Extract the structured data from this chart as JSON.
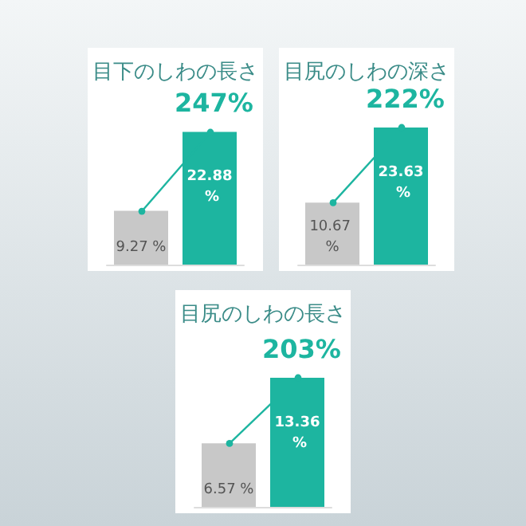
{
  "chart_data": [
    {
      "type": "bar",
      "title": "目下のしわの長さ",
      "categories": [
        null,
        null
      ],
      "values": [
        9.27,
        22.88
      ],
      "colors": [
        "#c8c8c8",
        "#1db5a0"
      ],
      "value_labels": [
        "9.27 %",
        "22.88 %"
      ],
      "annotations": [
        "247%"
      ],
      "tick_labels": false
    },
    {
      "type": "bar",
      "title": "目尻のしわの深さ",
      "categories": [
        null,
        null
      ],
      "values": [
        10.67,
        23.63
      ],
      "colors": [
        "#c8c8c8",
        "#1db5a0"
      ],
      "value_labels": [
        "10.67 %",
        "23.63 %"
      ],
      "annotations": [
        "222%"
      ],
      "tick_labels": false
    },
    {
      "type": "bar",
      "title": "目尻のしわの長さ",
      "categories": [
        null,
        null
      ],
      "values": [
        6.57,
        13.36
      ],
      "colors": [
        "#c8c8c8",
        "#1db5a0"
      ],
      "value_labels": [
        "6.57 %",
        "13.36 %"
      ],
      "annotations": [
        "203%"
      ],
      "tick_labels": false
    }
  ]
}
